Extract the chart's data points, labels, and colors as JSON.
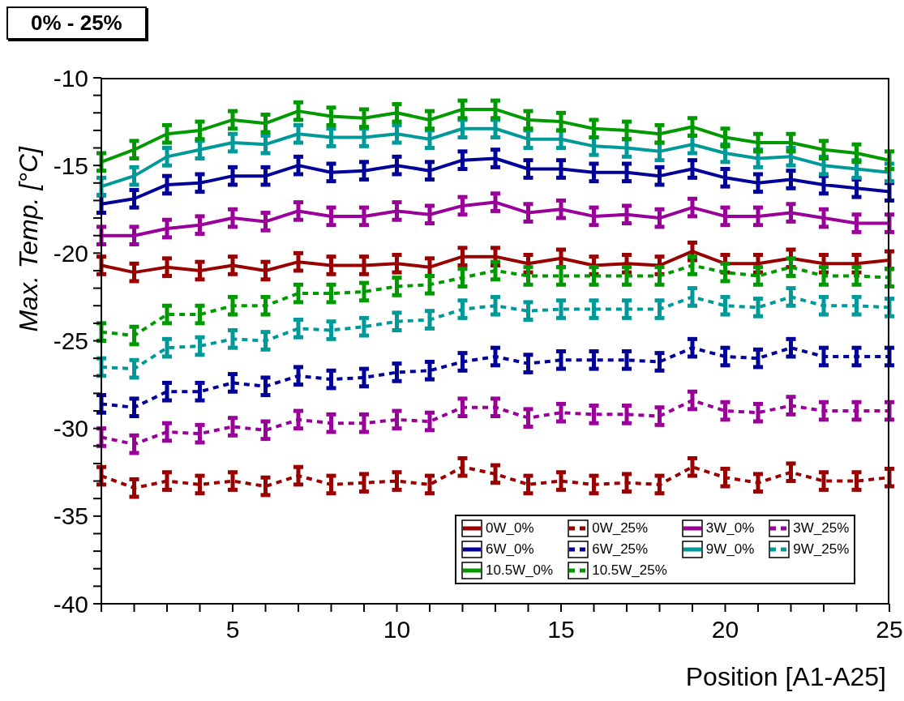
{
  "chart_data": {
    "type": "line",
    "title": "0% - 25%",
    "xlabel": "Position [A1-A25]",
    "ylabel": "Max. Temp. [°C]",
    "x": [
      1,
      2,
      3,
      4,
      5,
      6,
      7,
      8,
      9,
      10,
      11,
      12,
      13,
      14,
      15,
      16,
      17,
      18,
      19,
      20,
      21,
      22,
      23,
      24,
      25
    ],
    "xlim": [
      1,
      25
    ],
    "xticks": [
      {
        "value": 1,
        "label": null
      },
      {
        "value": 2,
        "label": null
      },
      {
        "value": 3,
        "label": null
      },
      {
        "value": 4,
        "label": null
      },
      5,
      {
        "value": 6,
        "label": null
      },
      {
        "value": 7,
        "label": null
      },
      {
        "value": 8,
        "label": null
      },
      {
        "value": 9,
        "label": null
      },
      10,
      {
        "value": 11,
        "label": null
      },
      {
        "value": 12,
        "label": null
      },
      {
        "value": 13,
        "label": null
      },
      {
        "value": 14,
        "label": null
      },
      15,
      {
        "value": 16,
        "label": null
      },
      {
        "value": 17,
        "label": null
      },
      {
        "value": 18,
        "label": null
      },
      {
        "value": 19,
        "label": null
      },
      20,
      {
        "value": 21,
        "label": null
      },
      {
        "value": 22,
        "label": null
      },
      {
        "value": 23,
        "label": null
      },
      {
        "value": 24,
        "label": null
      },
      25
    ],
    "ylim": [
      -40,
      -10
    ],
    "yticks": [
      -40,
      {
        "value": -39,
        "label": null
      },
      {
        "value": -38,
        "label": null
      },
      {
        "value": -37,
        "label": null
      },
      {
        "value": -36,
        "label": null
      },
      -35,
      {
        "value": -34,
        "label": null
      },
      {
        "value": -33,
        "label": null
      },
      {
        "value": -32,
        "label": null
      },
      {
        "value": -31,
        "label": null
      },
      -30,
      {
        "value": -29,
        "label": null
      },
      {
        "value": -28,
        "label": null
      },
      {
        "value": -27,
        "label": null
      },
      {
        "value": -26,
        "label": null
      },
      -25,
      {
        "value": -24,
        "label": null
      },
      {
        "value": -23,
        "label": null
      },
      {
        "value": -22,
        "label": null
      },
      {
        "value": -21,
        "label": null
      },
      -20,
      {
        "value": -19,
        "label": null
      },
      {
        "value": -18,
        "label": null
      },
      {
        "value": -17,
        "label": null
      },
      {
        "value": -16,
        "label": null
      },
      -15,
      {
        "value": -14,
        "label": null
      },
      {
        "value": -13,
        "label": null
      },
      {
        "value": -12,
        "label": null
      },
      {
        "value": -11,
        "label": null
      },
      -10
    ],
    "grid": false,
    "legend": "bottom right",
    "marker": "none",
    "series": [
      {
        "name": "0W_0%",
        "color": "#990000",
        "line_style": "solid",
        "values": [
          -20.7,
          -21.1,
          -20.8,
          -21.0,
          -20.7,
          -21.0,
          -20.5,
          -20.7,
          -20.7,
          -20.6,
          -20.8,
          -20.2,
          -20.2,
          -20.6,
          -20.3,
          -20.7,
          -20.6,
          -20.7,
          -19.9,
          -20.6,
          -20.6,
          -20.3,
          -20.6,
          -20.6,
          -20.4
        ],
        "errors": [
          0.5,
          0.5,
          0.5,
          0.5,
          0.5,
          0.5,
          0.5,
          0.5,
          0.5,
          0.5,
          0.5,
          0.5,
          0.5,
          0.5,
          0.5,
          0.5,
          0.5,
          0.5,
          0.5,
          0.5,
          0.5,
          0.5,
          0.5,
          0.5,
          0.5
        ]
      },
      {
        "name": "0W_25%",
        "color": "#990000",
        "line_style": "dashed",
        "values": [
          -32.7,
          -33.4,
          -33.0,
          -33.2,
          -33.0,
          -33.3,
          -32.7,
          -33.2,
          -33.1,
          -33.0,
          -33.2,
          -32.2,
          -32.6,
          -33.2,
          -33.0,
          -33.2,
          -33.1,
          -33.2,
          -32.2,
          -32.8,
          -33.1,
          -32.5,
          -33.0,
          -33.0,
          -32.8
        ],
        "errors": [
          0.5,
          0.5,
          0.5,
          0.5,
          0.5,
          0.5,
          0.5,
          0.5,
          0.5,
          0.5,
          0.5,
          0.5,
          0.5,
          0.5,
          0.5,
          0.5,
          0.5,
          0.5,
          0.5,
          0.5,
          0.5,
          0.5,
          0.5,
          0.5,
          0.5
        ]
      },
      {
        "name": "3W_0%",
        "color": "#990099",
        "line_style": "solid",
        "values": [
          -19.0,
          -19.0,
          -18.6,
          -18.4,
          -18.0,
          -18.2,
          -17.6,
          -17.9,
          -17.9,
          -17.6,
          -17.8,
          -17.3,
          -17.1,
          -17.7,
          -17.5,
          -17.9,
          -17.8,
          -18.0,
          -17.4,
          -17.9,
          -17.9,
          -17.7,
          -18.0,
          -18.3,
          -18.3
        ],
        "errors": [
          0.5,
          0.5,
          0.5,
          0.5,
          0.5,
          0.5,
          0.5,
          0.5,
          0.5,
          0.5,
          0.5,
          0.5,
          0.5,
          0.5,
          0.5,
          0.5,
          0.5,
          0.5,
          0.5,
          0.5,
          0.5,
          0.5,
          0.5,
          0.5,
          0.5
        ]
      },
      {
        "name": "3W_25%",
        "color": "#990099",
        "line_style": "dashed",
        "values": [
          -30.5,
          -30.9,
          -30.2,
          -30.3,
          -29.9,
          -30.1,
          -29.5,
          -29.7,
          -29.7,
          -29.5,
          -29.6,
          -28.8,
          -28.8,
          -29.4,
          -29.1,
          -29.2,
          -29.2,
          -29.3,
          -28.4,
          -29.0,
          -29.1,
          -28.7,
          -29.0,
          -29.0,
          -29.0
        ],
        "errors": [
          0.5,
          0.5,
          0.5,
          0.5,
          0.5,
          0.5,
          0.5,
          0.5,
          0.5,
          0.5,
          0.5,
          0.5,
          0.5,
          0.5,
          0.5,
          0.5,
          0.5,
          0.5,
          0.5,
          0.5,
          0.5,
          0.5,
          0.5,
          0.5,
          0.5
        ]
      },
      {
        "name": "6W_0%",
        "color": "#000099",
        "line_style": "solid",
        "values": [
          -17.2,
          -16.9,
          -16.1,
          -16.0,
          -15.6,
          -15.6,
          -15.0,
          -15.4,
          -15.3,
          -15.0,
          -15.3,
          -14.7,
          -14.6,
          -15.2,
          -15.2,
          -15.4,
          -15.4,
          -15.6,
          -15.2,
          -15.7,
          -16.0,
          -15.8,
          -16.1,
          -16.3,
          -16.5
        ],
        "errors": [
          0.5,
          0.5,
          0.5,
          0.5,
          0.5,
          0.5,
          0.5,
          0.5,
          0.5,
          0.5,
          0.5,
          0.5,
          0.5,
          0.5,
          0.5,
          0.5,
          0.5,
          0.5,
          0.5,
          0.5,
          0.5,
          0.5,
          0.5,
          0.5,
          0.5
        ]
      },
      {
        "name": "6W_25%",
        "color": "#000099",
        "line_style": "dashed",
        "values": [
          -28.6,
          -28.8,
          -27.9,
          -27.9,
          -27.4,
          -27.6,
          -27.0,
          -27.2,
          -27.1,
          -26.8,
          -26.7,
          -26.2,
          -25.9,
          -26.3,
          -26.1,
          -26.1,
          -26.1,
          -26.2,
          -25.4,
          -25.9,
          -26.0,
          -25.4,
          -25.9,
          -25.9,
          -25.9
        ],
        "errors": [
          0.5,
          0.5,
          0.5,
          0.5,
          0.5,
          0.5,
          0.5,
          0.5,
          0.5,
          0.5,
          0.5,
          0.5,
          0.5,
          0.5,
          0.5,
          0.5,
          0.5,
          0.5,
          0.5,
          0.5,
          0.5,
          0.5,
          0.5,
          0.5,
          0.5
        ]
      },
      {
        "name": "9W_0%",
        "color": "#009999",
        "line_style": "solid",
        "values": [
          -16.2,
          -15.6,
          -14.5,
          -14.1,
          -13.7,
          -13.8,
          -13.2,
          -13.4,
          -13.4,
          -13.2,
          -13.5,
          -12.9,
          -12.9,
          -13.5,
          -13.5,
          -13.9,
          -14.0,
          -14.2,
          -13.8,
          -14.3,
          -14.6,
          -14.5,
          -15.0,
          -15.2,
          -15.4
        ],
        "errors": [
          0.5,
          0.5,
          0.5,
          0.5,
          0.5,
          0.5,
          0.5,
          0.5,
          0.5,
          0.5,
          0.5,
          0.5,
          0.5,
          0.5,
          0.5,
          0.5,
          0.5,
          0.5,
          0.5,
          0.5,
          0.5,
          0.5,
          0.5,
          0.5,
          0.5
        ]
      },
      {
        "name": "9W_25%",
        "color": "#009999",
        "line_style": "dashed",
        "values": [
          -26.5,
          -26.6,
          -25.4,
          -25.3,
          -24.9,
          -25.0,
          -24.3,
          -24.4,
          -24.2,
          -23.9,
          -23.8,
          -23.2,
          -23.0,
          -23.3,
          -23.2,
          -23.2,
          -23.2,
          -23.2,
          -22.5,
          -23.0,
          -23.1,
          -22.5,
          -23.0,
          -23.0,
          -23.1
        ],
        "errors": [
          0.5,
          0.5,
          0.5,
          0.5,
          0.5,
          0.5,
          0.5,
          0.5,
          0.5,
          0.5,
          0.5,
          0.5,
          0.5,
          0.5,
          0.5,
          0.5,
          0.5,
          0.5,
          0.5,
          0.5,
          0.5,
          0.5,
          0.5,
          0.5,
          0.5
        ]
      },
      {
        "name": "10.5W_0%",
        "color": "#009900",
        "line_style": "solid",
        "values": [
          -14.8,
          -14.1,
          -13.2,
          -13.0,
          -12.4,
          -12.6,
          -11.9,
          -12.2,
          -12.3,
          -12.0,
          -12.4,
          -11.8,
          -11.8,
          -12.4,
          -12.5,
          -12.9,
          -13.0,
          -13.2,
          -12.8,
          -13.4,
          -13.7,
          -13.7,
          -14.1,
          -14.3,
          -14.7
        ],
        "errors": [
          0.5,
          0.5,
          0.5,
          0.5,
          0.5,
          0.5,
          0.5,
          0.5,
          0.5,
          0.5,
          0.5,
          0.5,
          0.5,
          0.5,
          0.5,
          0.5,
          0.5,
          0.5,
          0.5,
          0.5,
          0.5,
          0.5,
          0.5,
          0.5,
          0.5
        ]
      },
      {
        "name": "10.5W_25%",
        "color": "#009900",
        "line_style": "dashed",
        "values": [
          -24.5,
          -24.7,
          -23.5,
          -23.5,
          -23.0,
          -23.0,
          -22.3,
          -22.3,
          -22.2,
          -21.9,
          -21.8,
          -21.4,
          -21.0,
          -21.3,
          -21.3,
          -21.3,
          -21.3,
          -21.3,
          -20.7,
          -21.1,
          -21.3,
          -20.8,
          -21.3,
          -21.3,
          -21.4
        ],
        "errors": [
          0.5,
          0.5,
          0.5,
          0.5,
          0.5,
          0.5,
          0.5,
          0.5,
          0.5,
          0.5,
          0.5,
          0.5,
          0.5,
          0.5,
          0.5,
          0.5,
          0.5,
          0.5,
          0.5,
          0.5,
          0.5,
          0.5,
          0.5,
          0.5,
          0.5
        ]
      }
    ]
  }
}
